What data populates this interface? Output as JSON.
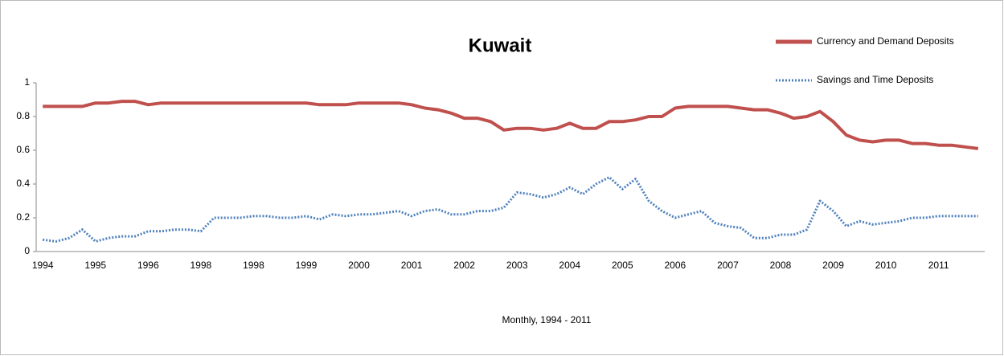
{
  "chart_data": {
    "type": "line",
    "title": "Kuwait",
    "x_label": "Monthly, 1994 - 2011",
    "categories": [
      "1994",
      null,
      null,
      null,
      "1995",
      null,
      null,
      null,
      "1996",
      null,
      null,
      null,
      "1998",
      null,
      null,
      null,
      "1998",
      null,
      null,
      null,
      "1999",
      null,
      null,
      null,
      "2000",
      null,
      null,
      null,
      "2001",
      null,
      null,
      null,
      "2002",
      null,
      null,
      null,
      "2003",
      null,
      null,
      null,
      "2004",
      null,
      null,
      null,
      "2005",
      null,
      null,
      null,
      "2006",
      null,
      null,
      null,
      "2007",
      null,
      null,
      null,
      "2008",
      null,
      null,
      null,
      "2009",
      null,
      null,
      null,
      "2010",
      null,
      null,
      null,
      "2011",
      null,
      null,
      null
    ],
    "series": [
      {
        "name": "Currency and Demand Deposits",
        "color": "#c0504d",
        "dashed": false,
        "values": [
          0.86,
          0.86,
          0.86,
          0.86,
          0.88,
          0.88,
          0.89,
          0.89,
          0.87,
          0.88,
          0.88,
          0.88,
          0.88,
          0.88,
          0.88,
          0.88,
          0.88,
          0.88,
          0.88,
          0.88,
          0.88,
          0.87,
          0.87,
          0.87,
          0.88,
          0.88,
          0.88,
          0.88,
          0.87,
          0.85,
          0.84,
          0.82,
          0.79,
          0.79,
          0.77,
          0.72,
          0.73,
          0.73,
          0.72,
          0.73,
          0.76,
          0.73,
          0.73,
          0.77,
          0.77,
          0.78,
          0.8,
          0.8,
          0.85,
          0.86,
          0.86,
          0.86,
          0.86,
          0.85,
          0.84,
          0.84,
          0.82,
          0.79,
          0.8,
          0.83,
          0.77,
          0.69,
          0.66,
          0.65,
          0.66,
          0.66,
          0.64,
          0.64,
          0.63,
          0.63,
          0.62,
          0.61
        ]
      },
      {
        "name": "Savings and Time Deposits",
        "color": "#4f81bd",
        "dashed": true,
        "values": [
          0.07,
          0.06,
          0.08,
          0.13,
          0.06,
          0.08,
          0.09,
          0.09,
          0.12,
          0.12,
          0.13,
          0.13,
          0.12,
          0.2,
          0.2,
          0.2,
          0.21,
          0.21,
          0.2,
          0.2,
          0.21,
          0.19,
          0.22,
          0.21,
          0.22,
          0.22,
          0.23,
          0.24,
          0.21,
          0.24,
          0.25,
          0.22,
          0.22,
          0.24,
          0.24,
          0.26,
          0.35,
          0.34,
          0.32,
          0.34,
          0.38,
          0.34,
          0.4,
          0.44,
          0.37,
          0.43,
          0.3,
          0.24,
          0.2,
          0.22,
          0.24,
          0.17,
          0.15,
          0.14,
          0.08,
          0.08,
          0.1,
          0.1,
          0.13,
          0.3,
          0.24,
          0.15,
          0.18,
          0.16,
          0.17,
          0.18,
          0.2,
          0.2,
          0.21,
          0.21,
          0.21,
          0.21
        ]
      }
    ],
    "ylim": [
      0,
      1
    ],
    "yticks": [
      0,
      0.2,
      0.4,
      0.6,
      0.8,
      1
    ],
    "grid": false
  }
}
